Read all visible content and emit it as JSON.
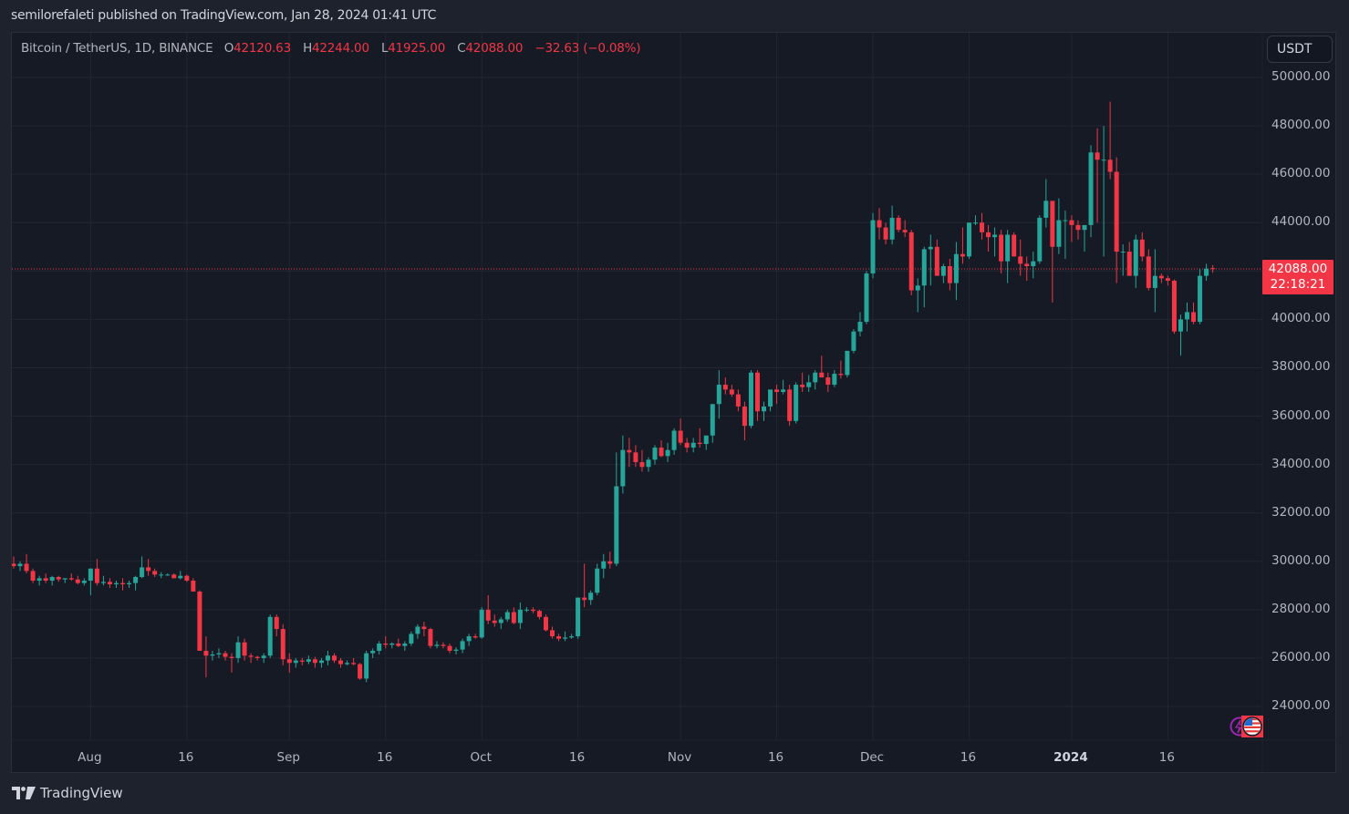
{
  "header": {
    "published": "semilorefaleti published on TradingView.com, Jan 28, 2024 01:41 UTC"
  },
  "legend": {
    "symbol": "Bitcoin / TetherUS, 1D, BINANCE",
    "open_label": "O",
    "open": "42120.63",
    "high_label": "H",
    "high": "42244.00",
    "low_label": "L",
    "low": "41925.00",
    "close_label": "C",
    "close": "42088.00",
    "change": "−32.63 (−0.08%)"
  },
  "currency_button": "USDT",
  "last_price": {
    "price": "42088.00",
    "countdown": "22:18:21"
  },
  "footer": {
    "brand": "TradingView"
  },
  "colors": {
    "up": "#26a69a",
    "up_body": "#089981",
    "down": "#f23645",
    "background": "#161a25",
    "grid": "#232632",
    "frame": "#1e222d",
    "text": "#b2b5be"
  },
  "chart_data": {
    "type": "candlestick",
    "title": "Bitcoin / TetherUS, 1D, BINANCE",
    "xlabel": "",
    "ylabel": "USDT",
    "ylim": [
      22800,
      50800
    ],
    "grid": true,
    "y_ticks": [
      "50000.00",
      "48000.00",
      "46000.00",
      "44000.00",
      "42000.00",
      "40000.00",
      "38000.00",
      "36000.00",
      "34000.00",
      "32000.00",
      "30000.00",
      "28000.00",
      "26000.00",
      "24000.00"
    ],
    "x_ticks": [
      {
        "label": "Aug",
        "day": 12
      },
      {
        "label": "16",
        "day": 27
      },
      {
        "label": "Sep",
        "day": 43
      },
      {
        "label": "16",
        "day": 58
      },
      {
        "label": "Oct",
        "day": 73
      },
      {
        "label": "16",
        "day": 88
      },
      {
        "label": "Nov",
        "day": 104
      },
      {
        "label": "16",
        "day": 119
      },
      {
        "label": "Dec",
        "day": 134
      },
      {
        "label": "16",
        "day": 149
      },
      {
        "label": "2024",
        "day": 165,
        "bold": true
      },
      {
        "label": "16",
        "day": 180
      }
    ],
    "start_date": "2023-07-20",
    "end_date": "2024-01-28",
    "last_price": 42088.0,
    "ohlc": [
      [
        29900,
        30200,
        29700,
        29800
      ],
      [
        29800,
        30000,
        29600,
        29900
      ],
      [
        29900,
        30300,
        29500,
        29600
      ],
      [
        29600,
        29700,
        29100,
        29200
      ],
      [
        29200,
        29400,
        29000,
        29300
      ],
      [
        29300,
        29500,
        29100,
        29200
      ],
      [
        29200,
        29400,
        29000,
        29350
      ],
      [
        29350,
        29400,
        29150,
        29250
      ],
      [
        29250,
        29300,
        29100,
        29300
      ],
      [
        29300,
        29500,
        29200,
        29250
      ],
      [
        29250,
        29400,
        29050,
        29100
      ],
      [
        29100,
        29300,
        29000,
        29200
      ],
      [
        29200,
        29700,
        28600,
        29700
      ],
      [
        29700,
        30100,
        29000,
        29100
      ],
      [
        29100,
        29400,
        29000,
        29150
      ],
      [
        29150,
        29300,
        28900,
        29050
      ],
      [
        29050,
        29200,
        28900,
        29100
      ],
      [
        29100,
        29300,
        28800,
        29050
      ],
      [
        29050,
        29200,
        28900,
        29100
      ],
      [
        29100,
        29400,
        28800,
        29350
      ],
      [
        29350,
        30200,
        29300,
        29750
      ],
      [
        29750,
        30100,
        29400,
        29600
      ],
      [
        29600,
        29700,
        29350,
        29450
      ],
      [
        29450,
        29550,
        29300,
        29450
      ],
      [
        29450,
        29500,
        29400,
        29450
      ],
      [
        29450,
        29500,
        29300,
        29300
      ],
      [
        29300,
        29600,
        29250,
        29400
      ],
      [
        29400,
        29450,
        29150,
        29200
      ],
      [
        29200,
        29300,
        28900,
        28750
      ],
      [
        28750,
        28800,
        26300,
        26300
      ],
      [
        26300,
        26900,
        25200,
        26100
      ],
      [
        26100,
        26300,
        25900,
        26150
      ],
      [
        26150,
        26400,
        26000,
        26200
      ],
      [
        26200,
        26300,
        25900,
        26050
      ],
      [
        26050,
        26200,
        25400,
        26000
      ],
      [
        26000,
        26900,
        25800,
        26650
      ],
      [
        26650,
        26800,
        25900,
        26100
      ],
      [
        26100,
        26200,
        25800,
        26050
      ],
      [
        26050,
        26100,
        25900,
        26000
      ],
      [
        26000,
        26200,
        25800,
        26100
      ],
      [
        26100,
        27800,
        26000,
        27700
      ],
      [
        27700,
        27800,
        26900,
        27200
      ],
      [
        27200,
        27400,
        25700,
        25950
      ],
      [
        25950,
        26200,
        25400,
        25800
      ],
      [
        25800,
        26000,
        25600,
        25900
      ],
      [
        25900,
        26000,
        25700,
        25850
      ],
      [
        25850,
        26100,
        25750,
        25950
      ],
      [
        25950,
        26050,
        25600,
        25800
      ],
      [
        25800,
        26000,
        25600,
        25900
      ],
      [
        25900,
        26300,
        25700,
        26100
      ],
      [
        26100,
        26200,
        25800,
        25900
      ],
      [
        25900,
        26000,
        25600,
        25750
      ],
      [
        25750,
        25900,
        25700,
        25800
      ],
      [
        25800,
        26000,
        25700,
        25750
      ],
      [
        25750,
        25800,
        25100,
        25150
      ],
      [
        25150,
        26300,
        25000,
        26200
      ],
      [
        26200,
        26400,
        26000,
        26300
      ],
      [
        26300,
        26700,
        26150,
        26600
      ],
      [
        26600,
        26900,
        26400,
        26550
      ],
      [
        26550,
        26650,
        26400,
        26600
      ],
      [
        26600,
        26800,
        26450,
        26500
      ],
      [
        26500,
        26700,
        26300,
        26600
      ],
      [
        26600,
        27100,
        26500,
        27000
      ],
      [
        27000,
        27400,
        26800,
        27300
      ],
      [
        27300,
        27500,
        26900,
        27200
      ],
      [
        27200,
        27250,
        26400,
        26500
      ],
      [
        26500,
        26700,
        26400,
        26550
      ],
      [
        26550,
        26650,
        26400,
        26500
      ],
      [
        26500,
        26600,
        26200,
        26300
      ],
      [
        26300,
        26450,
        26150,
        26350
      ],
      [
        26350,
        26800,
        26200,
        26700
      ],
      [
        26700,
        27000,
        26500,
        26900
      ],
      [
        26900,
        27000,
        26800,
        26850
      ],
      [
        26850,
        28100,
        26800,
        28000
      ],
      [
        28000,
        28600,
        27400,
        27550
      ],
      [
        27550,
        27800,
        27300,
        27450
      ],
      [
        27450,
        27700,
        27200,
        27600
      ],
      [
        27600,
        28000,
        27500,
        27900
      ],
      [
        27900,
        28100,
        27400,
        27450
      ],
      [
        27450,
        28300,
        27200,
        28000
      ],
      [
        28000,
        28100,
        27900,
        28000
      ],
      [
        28000,
        28100,
        27850,
        27950
      ],
      [
        27950,
        28000,
        27600,
        27700
      ],
      [
        27700,
        27800,
        27100,
        27150
      ],
      [
        27150,
        27300,
        26800,
        26900
      ],
      [
        26900,
        27000,
        26700,
        26800
      ],
      [
        26800,
        27100,
        26700,
        26850
      ],
      [
        26850,
        27000,
        26800,
        26900
      ],
      [
        26900,
        28400,
        26800,
        28500
      ],
      [
        28500,
        29900,
        28100,
        28400
      ],
      [
        28400,
        28800,
        28200,
        28700
      ],
      [
        28700,
        29900,
        28600,
        29700
      ],
      [
        29700,
        30300,
        29300,
        30000
      ],
      [
        30000,
        30400,
        29700,
        29900
      ],
      [
        29900,
        34500,
        29800,
        33100
      ],
      [
        33100,
        35200,
        32800,
        34600
      ],
      [
        34600,
        35100,
        33900,
        34500
      ],
      [
        34500,
        34800,
        33900,
        34100
      ],
      [
        34100,
        34600,
        33700,
        33900
      ],
      [
        33900,
        34300,
        33700,
        34200
      ],
      [
        34200,
        34800,
        34000,
        34700
      ],
      [
        34700,
        35000,
        34300,
        34350
      ],
      [
        34350,
        34900,
        34100,
        34600
      ],
      [
        34600,
        35500,
        34400,
        35400
      ],
      [
        35400,
        35900,
        34800,
        34900
      ],
      [
        34900,
        35100,
        34500,
        34700
      ],
      [
        34700,
        35100,
        34500,
        34900
      ],
      [
        34900,
        35500,
        34700,
        34850
      ],
      [
        34850,
        35200,
        34600,
        35200
      ],
      [
        35200,
        36200,
        34900,
        36500
      ],
      [
        36500,
        37900,
        35900,
        37300
      ],
      [
        37300,
        37600,
        36900,
        37100
      ],
      [
        37100,
        37300,
        36800,
        36900
      ],
      [
        36900,
        37100,
        36200,
        36400
      ],
      [
        36400,
        36600,
        35000,
        35600
      ],
      [
        35600,
        37900,
        35500,
        37800
      ],
      [
        37800,
        37900,
        35800,
        36200
      ],
      [
        36200,
        36600,
        35800,
        36400
      ],
      [
        36400,
        37000,
        36200,
        37100
      ],
      [
        37100,
        37300,
        36500,
        37000
      ],
      [
        37000,
        37500,
        36900,
        37100
      ],
      [
        37100,
        37300,
        35600,
        35800
      ],
      [
        35800,
        37400,
        35700,
        37300
      ],
      [
        37300,
        37800,
        37000,
        37200
      ],
      [
        37200,
        37700,
        37000,
        37400
      ],
      [
        37400,
        37900,
        37100,
        37800
      ],
      [
        37800,
        38500,
        37600,
        37600
      ],
      [
        37600,
        37800,
        37000,
        37300
      ],
      [
        37300,
        37900,
        37200,
        37750
      ],
      [
        37750,
        38300,
        37550,
        37700
      ],
      [
        37700,
        38700,
        37600,
        38700
      ],
      [
        38700,
        39600,
        38600,
        39500
      ],
      [
        39500,
        40300,
        39300,
        39900
      ],
      [
        39900,
        42000,
        39800,
        41900
      ],
      [
        41900,
        44400,
        41700,
        44100
      ],
      [
        44100,
        44600,
        43300,
        43800
      ],
      [
        43800,
        44000,
        43100,
        43300
      ],
      [
        43300,
        44700,
        43100,
        44200
      ],
      [
        44200,
        44300,
        43600,
        43700
      ],
      [
        43700,
        44100,
        43400,
        43600
      ],
      [
        43600,
        43700,
        41000,
        41200
      ],
      [
        41200,
        41700,
        40300,
        41400
      ],
      [
        41400,
        43000,
        40500,
        42900
      ],
      [
        42900,
        43500,
        41400,
        43000
      ],
      [
        43000,
        43300,
        41900,
        41800
      ],
      [
        41800,
        42300,
        41500,
        42200
      ],
      [
        42200,
        42500,
        41200,
        41500
      ],
      [
        41500,
        43200,
        40800,
        42700
      ],
      [
        42700,
        43800,
        42300,
        42600
      ],
      [
        42600,
        44000,
        42500,
        44000
      ],
      [
        44000,
        44300,
        43900,
        44000
      ],
      [
        44000,
        44400,
        43300,
        43600
      ],
      [
        43600,
        43900,
        42800,
        43400
      ],
      [
        43400,
        43800,
        42600,
        43500
      ],
      [
        43500,
        43700,
        41900,
        42400
      ],
      [
        42400,
        43700,
        41500,
        43500
      ],
      [
        43500,
        43600,
        42600,
        42600
      ],
      [
        42600,
        43300,
        41800,
        42300
      ],
      [
        42300,
        42600,
        41600,
        42200
      ],
      [
        42200,
        42800,
        41700,
        42400
      ],
      [
        42400,
        44300,
        42300,
        44200
      ],
      [
        44200,
        45800,
        43800,
        44900
      ],
      [
        44900,
        44600,
        40700,
        43000
      ],
      [
        43000,
        45000,
        42700,
        44100
      ],
      [
        44100,
        44500,
        42500,
        44100
      ],
      [
        44100,
        44300,
        43200,
        43900
      ],
      [
        43900,
        44100,
        43300,
        43700
      ],
      [
        43700,
        43800,
        42800,
        43900
      ],
      [
        43900,
        47200,
        43400,
        46900
      ],
      [
        46900,
        47900,
        44000,
        46600
      ],
      [
        46600,
        48000,
        42600,
        46600
      ],
      [
        46600,
        49000,
        45800,
        46100
      ],
      [
        46100,
        46700,
        41500,
        42800
      ],
      [
        42800,
        43100,
        41800,
        42800
      ],
      [
        42800,
        43200,
        42100,
        41800
      ],
      [
        41800,
        43500,
        41300,
        43300
      ],
      [
        43300,
        43600,
        42400,
        42600
      ],
      [
        42600,
        42900,
        41200,
        41300
      ],
      [
        41300,
        42900,
        40300,
        41800
      ],
      [
        41800,
        41900,
        41500,
        41700
      ],
      [
        41700,
        41800,
        41400,
        41600
      ],
      [
        41600,
        41650,
        39400,
        39500
      ],
      [
        39500,
        40200,
        38500,
        40000
      ],
      [
        40000,
        40700,
        39500,
        40300
      ],
      [
        40300,
        40700,
        39800,
        39900
      ],
      [
        39900,
        42100,
        39800,
        41800
      ],
      [
        41800,
        42300,
        41600,
        42100
      ],
      [
        42120,
        42244,
        41925,
        42088
      ]
    ]
  }
}
